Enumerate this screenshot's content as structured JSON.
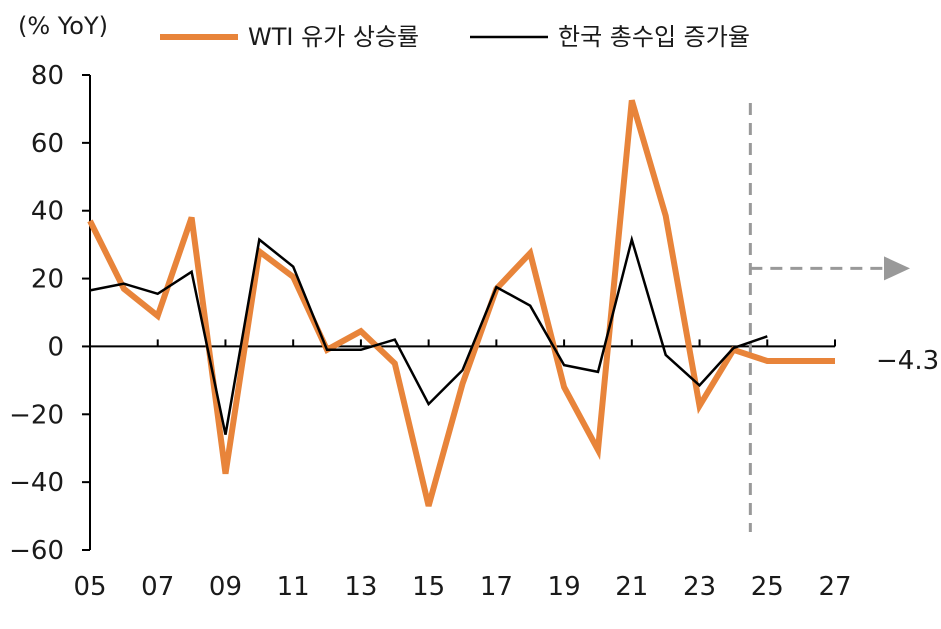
{
  "chart_data": {
    "type": "line",
    "unit_label": "(% YoY)",
    "ylim": [
      -60,
      80
    ],
    "yticks": [
      80,
      60,
      40,
      20,
      0,
      -20,
      -40,
      -60
    ],
    "xlim": [
      5,
      27
    ],
    "xtick_labels": [
      "05",
      "07",
      "09",
      "11",
      "13",
      "15",
      "17",
      "19",
      "21",
      "23",
      "25",
      "27"
    ],
    "forecast_start": 24.5,
    "forecast_value_label": "-4.3",
    "legend_position": "top",
    "series": [
      {
        "name": "WTI 유가 상승률",
        "color": "#E8843A",
        "x": [
          5,
          6,
          7,
          8,
          9,
          10,
          11,
          12,
          13,
          14,
          15,
          16,
          17,
          18,
          19,
          20,
          21,
          22,
          23,
          24,
          25,
          26,
          27
        ],
        "values": [
          37,
          17,
          9,
          38,
          -37.5,
          28,
          20.5,
          -1,
          4.5,
          -5,
          -47,
          -11,
          17,
          27.5,
          -12,
          -30.5,
          72.5,
          38.5,
          -17.5,
          -1,
          -4.3,
          -4.3,
          -4.3
        ]
      },
      {
        "name": "한국 총수입 증가율",
        "color": "#000000",
        "x": [
          5,
          6,
          7,
          8,
          9,
          10,
          11,
          12,
          13,
          14,
          15,
          16,
          17,
          18,
          19,
          20,
          21,
          22,
          23,
          24,
          25
        ],
        "values": [
          16.5,
          18.5,
          15.5,
          22,
          -26,
          31.5,
          23.5,
          -1,
          -1,
          2,
          -17,
          -7,
          17.5,
          12,
          -5.5,
          -7.5,
          31.5,
          -2.5,
          -11.5,
          -0.5,
          3
        ]
      }
    ]
  }
}
